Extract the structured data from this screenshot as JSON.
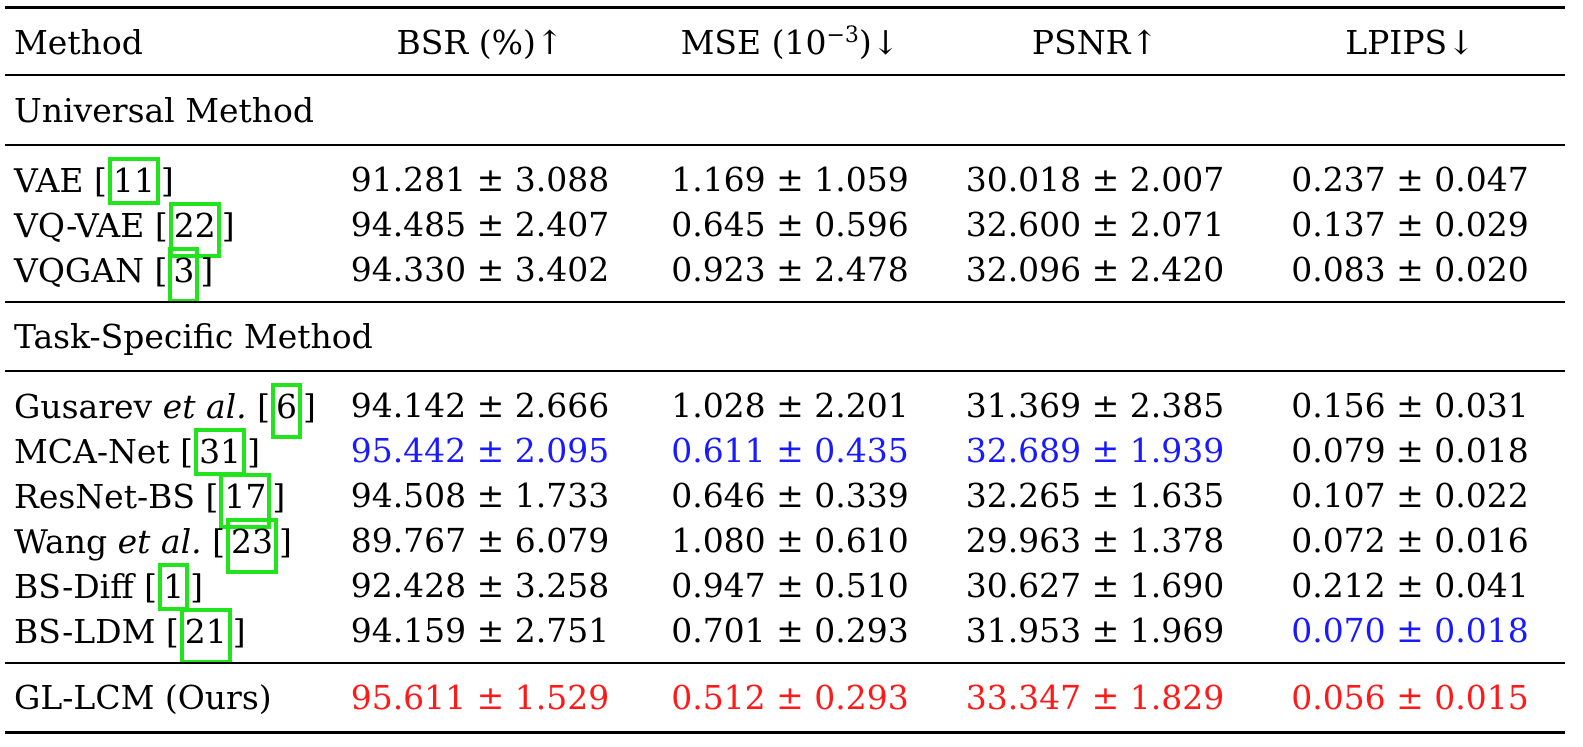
{
  "header": {
    "method": "Method",
    "bsr": "BSR (%)↑",
    "mse_prefix": "MSE (10",
    "mse_exp": "−3",
    "mse_suffix": ")↓",
    "psnr": "PSNR↑",
    "lpips": "LPIPS↓"
  },
  "sections": {
    "universal": "Universal Method",
    "task_specific": "Task-Specific Method"
  },
  "universal_rows": [
    {
      "name": "VAE",
      "ref": "11",
      "bsr": "91.281 ± 3.088",
      "mse": "1.169 ± 1.059",
      "psnr": "30.018 ± 2.007",
      "lpips": "0.237 ± 0.047"
    },
    {
      "name": "VQ-VAE",
      "ref": "22",
      "bsr": "94.485 ± 2.407",
      "mse": "0.645 ± 0.596",
      "psnr": "32.600 ± 2.071",
      "lpips": "0.137 ± 0.029"
    },
    {
      "name": "VQGAN",
      "ref": "3",
      "bsr": "94.330 ± 3.402",
      "mse": "0.923 ± 2.478",
      "psnr": "32.096 ± 2.420",
      "lpips": "0.083 ± 0.020"
    }
  ],
  "task_rows": [
    {
      "name": "Gusarev",
      "name_ital": "et al.",
      "ref": "6",
      "bsr": "94.142 ± 2.666",
      "mse": "1.028 ± 2.201",
      "psnr": "31.369 ± 2.385",
      "lpips": "0.156 ± 0.031"
    },
    {
      "name": "MCA-Net",
      "ref": "31",
      "bsr": "95.442 ± 2.095",
      "mse": "0.611 ± 0.435",
      "psnr": "32.689 ± 1.939",
      "lpips": "0.079 ± 0.018"
    },
    {
      "name": "ResNet-BS",
      "ref": "17",
      "bsr": "94.508 ± 1.733",
      "mse": "0.646 ± 0.339",
      "psnr": "32.265 ± 1.635",
      "lpips": "0.107 ± 0.022"
    },
    {
      "name": "Wang",
      "name_ital": "et al.",
      "ref": "23",
      "bsr": "89.767 ± 6.079",
      "mse": "1.080 ± 0.610",
      "psnr": "29.963 ± 1.378",
      "lpips": "0.072 ± 0.016"
    },
    {
      "name": "BS-Diff",
      "ref": "1",
      "bsr": "92.428 ± 3.258",
      "mse": "0.947 ± 0.510",
      "psnr": "30.627 ± 1.690",
      "lpips": "0.212 ± 0.041"
    },
    {
      "name": "BS-LDM",
      "ref": "21",
      "bsr": "94.159 ± 2.751",
      "mse": "0.701 ± 0.293",
      "psnr": "31.953 ± 1.969",
      "lpips": "0.070 ± 0.018"
    }
  ],
  "ours_row": {
    "name": "GL-LCM (Ours)",
    "bsr": "95.611 ± 1.529",
    "mse": "0.512 ± 0.293",
    "psnr": "33.347 ± 1.829",
    "lpips": "0.056 ± 0.015"
  },
  "colors": {
    "best": "#ff1a1a",
    "second_best": "#1a1aff",
    "citation_box": "#22e41c"
  }
}
